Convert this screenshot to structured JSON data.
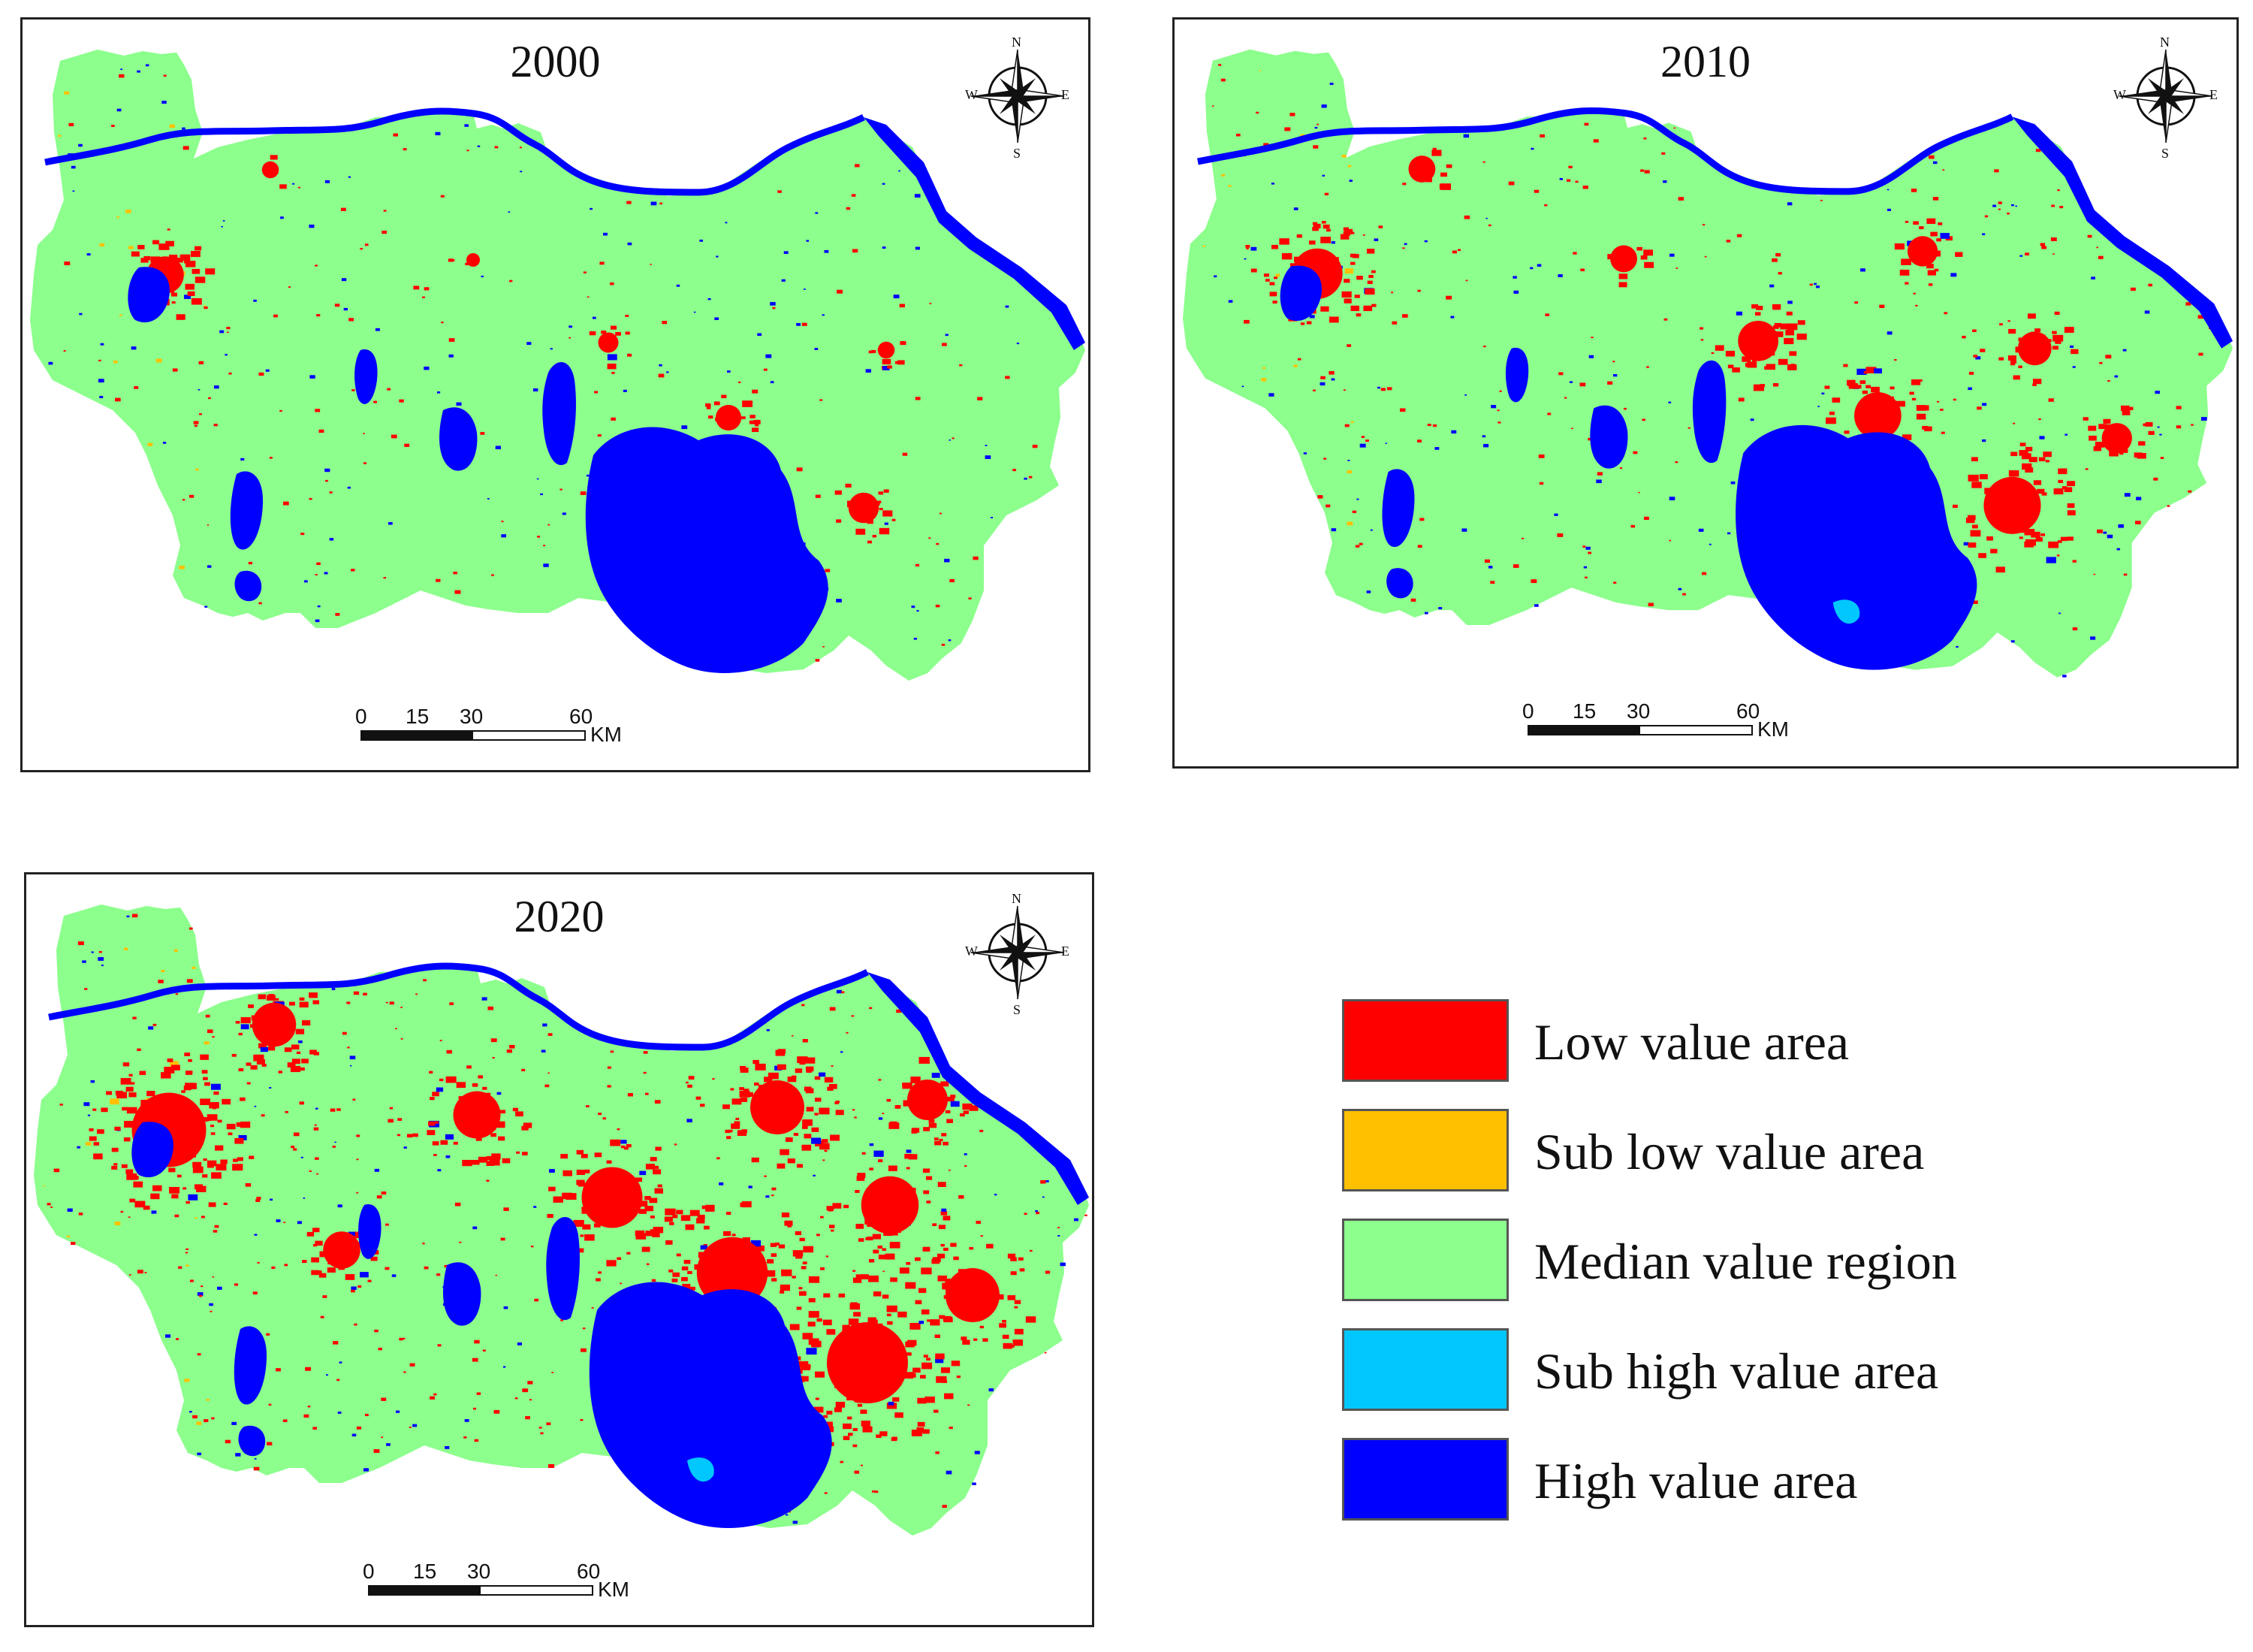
{
  "panels": [
    {
      "year": "2000",
      "scale": {
        "ticks": [
          "0",
          "15",
          "30",
          "60"
        ],
        "unit": "KM"
      },
      "compass": {
        "n": "N",
        "s": "S",
        "e": "E",
        "w": "W"
      }
    },
    {
      "year": "2010",
      "scale": {
        "ticks": [
          "0",
          "15",
          "30",
          "60"
        ],
        "unit": "KM"
      },
      "compass": {
        "n": "N",
        "s": "S",
        "e": "E",
        "w": "W"
      }
    },
    {
      "year": "2020",
      "scale": {
        "ticks": [
          "0",
          "15",
          "30",
          "60"
        ],
        "unit": "KM"
      },
      "compass": {
        "n": "N",
        "s": "S",
        "e": "E",
        "w": "W"
      }
    }
  ],
  "legend": [
    {
      "label": "Low value area",
      "color": "#ff0000"
    },
    {
      "label": "Sub low value area",
      "color": "#ffc000"
    },
    {
      "label": "Median value region",
      "color": "#8cff8c"
    },
    {
      "label": "Sub high value area",
      "color": "#00c8ff"
    },
    {
      "label": "High value area",
      "color": "#0000ff"
    }
  ],
  "colors": {
    "land": "#8cff8c",
    "water": "#0000ff",
    "urban": "#ff0000",
    "sublow": "#ffc000",
    "subhigh": "#00c8ff"
  }
}
